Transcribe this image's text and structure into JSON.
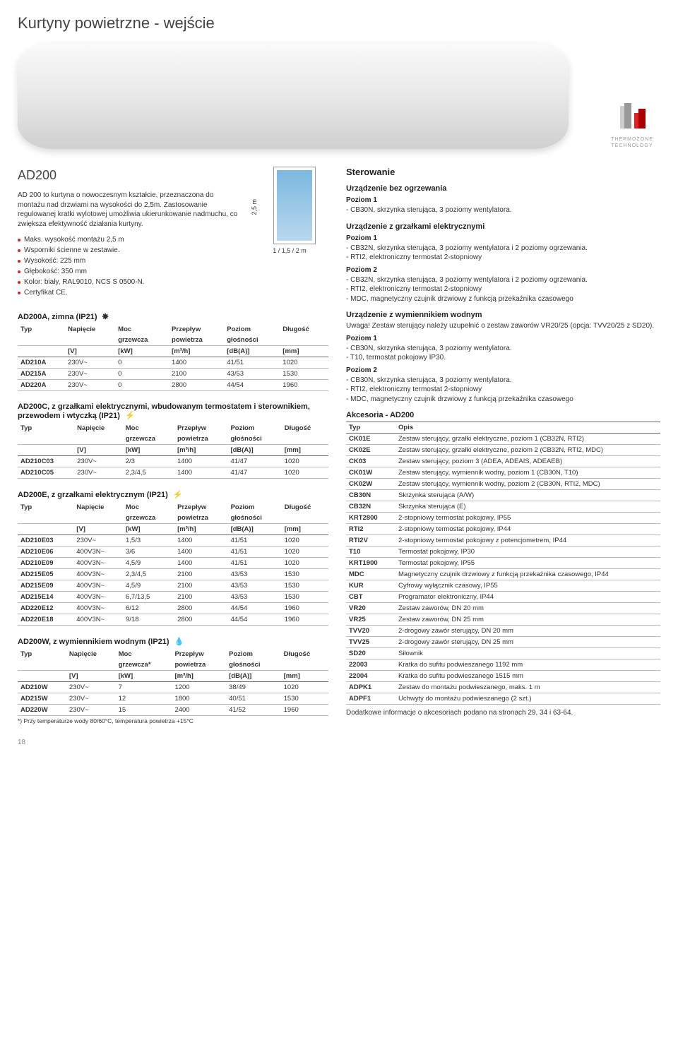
{
  "pageTitle": "Kurtyny powietrzne - wejście",
  "modelName": "AD200",
  "heroLogo": {
    "line1": "THERMOZONE",
    "line2": "TECHNOLOGY",
    "color": "#d22"
  },
  "intro": {
    "para1": "AD 200 to kurtyna o nowoczesnym kształcie, przeznaczona do montażu nad drzwiami na wysokości do 2,5m. Zastosowanie regulowanej kratki wylotowej umożliwia ukierunkowanie nadmuchu, co zwiększa efektywność działania kurtyny.",
    "bullets": [
      "Maks. wysokość montażu 2,5 m",
      "Wsporniki ścienne w zestawie.",
      "Wysokość: 225 mm",
      "Głębokość: 350 mm",
      "Kolor: biały, RAL9010, NCS S 0500-N.",
      "Certyfikat CE."
    ]
  },
  "diagram": {
    "heightLabel": "2,5 m",
    "widthLabel": "1 / 1,5 / 2 m",
    "blue": "#7bb8e0"
  },
  "tables": {
    "headers": {
      "typ": "Typ",
      "napiecie": "Napięcie",
      "moc": "Moc",
      "mocSub": "grzewcza",
      "mocStarSub": "grzewcza*",
      "przeplyw": "Przepływ",
      "przeplywSub": "powietrza",
      "poziom": "Poziom",
      "poziomSub": "głośności",
      "dlugosc": "Długość",
      "vUnit": "[V]",
      "kwUnit": "[kW]",
      "m3hUnit": "[m³/h]",
      "dbUnit": "[dB(A)]",
      "mmUnit": "[mm]"
    },
    "tableA": {
      "title": "AD200A, zimna (IP21)",
      "icon": "❋",
      "rows": [
        [
          "AD210A",
          "230V~",
          "0",
          "1400",
          "41/51",
          "1020"
        ],
        [
          "AD215A",
          "230V~",
          "0",
          "2100",
          "43/53",
          "1530"
        ],
        [
          "AD220A",
          "230V~",
          "0",
          "2800",
          "44/54",
          "1960"
        ]
      ]
    },
    "tableC": {
      "title": "AD200C, z grzałkami elektrycznymi, wbudowanym termostatem i sterownikiem, przewodem i wtyczką (IP21)",
      "icon": "⚡",
      "rows": [
        [
          "AD210C03",
          "230V~",
          "2/3",
          "1400",
          "41/47",
          "1020"
        ],
        [
          "AD210C05",
          "230V~",
          "2,3/4,5",
          "1400",
          "41/47",
          "1020"
        ]
      ]
    },
    "tableE": {
      "title": "AD200E, z grzałkami elektrycznym (IP21)",
      "icon": "⚡",
      "rows": [
        [
          "AD210E03",
          "230V~",
          "1,5/3",
          "1400",
          "41/51",
          "1020"
        ],
        [
          "AD210E06",
          "400V3N~",
          "3/6",
          "1400",
          "41/51",
          "1020"
        ],
        [
          "AD210E09",
          "400V3N~",
          "4,5/9",
          "1400",
          "41/51",
          "1020"
        ],
        [
          "AD215E05",
          "400V3N~",
          "2,3/4,5",
          "2100",
          "43/53",
          "1530"
        ],
        [
          "AD215E09",
          "400V3N~",
          "4,5/9",
          "2100",
          "43/53",
          "1530"
        ],
        [
          "AD215E14",
          "400V3N~",
          "6,7/13,5",
          "2100",
          "43/53",
          "1530"
        ],
        [
          "AD220E12",
          "400V3N~",
          "6/12",
          "2800",
          "44/54",
          "1960"
        ],
        [
          "AD220E18",
          "400V3N~",
          "9/18",
          "2800",
          "44/54",
          "1960"
        ]
      ]
    },
    "tableW": {
      "title": "AD200W, z wymiennikiem wodnym (IP21)",
      "icon": "💧",
      "rows": [
        [
          "AD210W",
          "230V~",
          "7",
          "1200",
          "38/49",
          "1020"
        ],
        [
          "AD215W",
          "230V~",
          "12",
          "1800",
          "40/51",
          "1530"
        ],
        [
          "AD220W",
          "230V~",
          "15",
          "2400",
          "41/52",
          "1960"
        ]
      ],
      "footnote": "*) Przy temperaturze wody 80/60°C, temperatura powietrza +15°C"
    }
  },
  "right": {
    "sterowanie": "Sterowanie",
    "bezOgrzewania": {
      "title": "Urządzenie bez ogrzewania",
      "p1": "Poziom 1",
      "items1": [
        "- CB30N, skrzynka sterująca, 3 poziomy wentylatora."
      ]
    },
    "grzElektr": {
      "title": "Urządzenie z grzałkami elektrycznymi",
      "p1": "Poziom 1",
      "items1": [
        "- CB32N, skrzynka sterująca, 3 poziomy wentylatora i 2 poziomy ogrzewania.",
        "- RTI2, elektroniczny termostat 2-stopniowy"
      ],
      "p2": "Poziom 2",
      "items2": [
        "- CB32N, skrzynka sterująca, 3 poziomy wentylatora i 2 poziomy ogrzewania.",
        "- RTI2, elektroniczny termostat 2-stopniowy",
        "- MDC, magnetyczny czujnik drzwiowy z funkcją przekaźnika czasowego"
      ]
    },
    "wymWodny": {
      "title": "Urządzenie z wymiennikiem wodnym",
      "note": "Uwaga! Zestaw sterujący należy uzupełnić o zestaw zaworów VR20/25 (opcja: TVV20/25 z SD20).",
      "p1": "Poziom 1",
      "items1": [
        "- CB30N, skrzynka sterująca, 3 poziomy wentylatora.",
        "- T10, termostat pokojowy IP30."
      ],
      "p2": "Poziom 2",
      "items2": [
        "- CB30N, skrzynka sterująca, 3 poziomy wentylatora.",
        "- RTI2, elektroniczny termostat 2-stopniowy",
        "- MDC, magnetyczny czujnik drzwiowy z funkcją przekaźnika czasowego"
      ]
    },
    "acc": {
      "title": "Akcesoria - AD200",
      "colTyp": "Typ",
      "colOpis": "Opis",
      "rows": [
        [
          "CK01E",
          "Zestaw sterujący, grzałki elektryczne, poziom 1 (CB32N, RTI2)"
        ],
        [
          "CK02E",
          "Zestaw sterujący, grzałki elektryczne, poziom 2 (CB32N, RTI2, MDC)"
        ],
        [
          "CK03",
          "Zestaw sterujący, poziom 3 (ADEA, ADEAIS, ADEAEB)"
        ],
        [
          "CK01W",
          "Zestaw sterujący, wymiennik wodny, poziom 1 (CB30N, T10)"
        ],
        [
          "CK02W",
          "Zestaw sterujący, wymiennik wodny, poziom 2 (CB30N, RTI2, MDC)"
        ],
        [
          "CB30N",
          "Skrzynka sterująca (A/W)"
        ],
        [
          "CB32N",
          "Skrzynka sterująca (E)"
        ],
        [
          "KRT2800",
          "2-stopniowy termostat pokojowy, IP55"
        ],
        [
          "RTI2",
          "2-stopniowy termostat pokojowy, IP44"
        ],
        [
          "RTI2V",
          "2-stopniowy termostat pokojowy z potencjometrem, IP44"
        ],
        [
          "T10",
          "Termostat pokojowy, IP30"
        ],
        [
          "KRT1900",
          "Termostat pokojowy, IP55"
        ],
        [
          "MDC",
          "Magnetyczny czujnik drzwiowy z funkcją przekaźnika czasowego, IP44"
        ],
        [
          "KUR",
          "Cyfrowy wyłącznik czasowy, IP55"
        ],
        [
          "CBT",
          "Programator elektroniczny, IP44"
        ],
        [
          "VR20",
          "Zestaw zaworów, DN 20 mm"
        ],
        [
          "VR25",
          "Zestaw zaworów, DN 25 mm"
        ],
        [
          "TVV20",
          "2-drogowy zawór sterujący, DN 20 mm"
        ],
        [
          "TVV25",
          "2-drogowy zawór sterujący, DN 25 mm"
        ],
        [
          "SD20",
          "Siłownik"
        ],
        [
          "22003",
          "Kratka do sufitu podwieszanego 1192 mm"
        ],
        [
          "22004",
          "Kratka do sufitu podwieszanego 1515 mm"
        ],
        [
          "ADPK1",
          "Zestaw do montażu podwieszanego, maks. 1 m"
        ],
        [
          "ADPF1",
          "Uchwyty do montażu podwieszanego (2 szt.)"
        ]
      ]
    }
  },
  "pageNum": "18",
  "bottomNote": "Dodatkowe informacje o akcesoriach podano na stronach 29, 34 i 63-64."
}
